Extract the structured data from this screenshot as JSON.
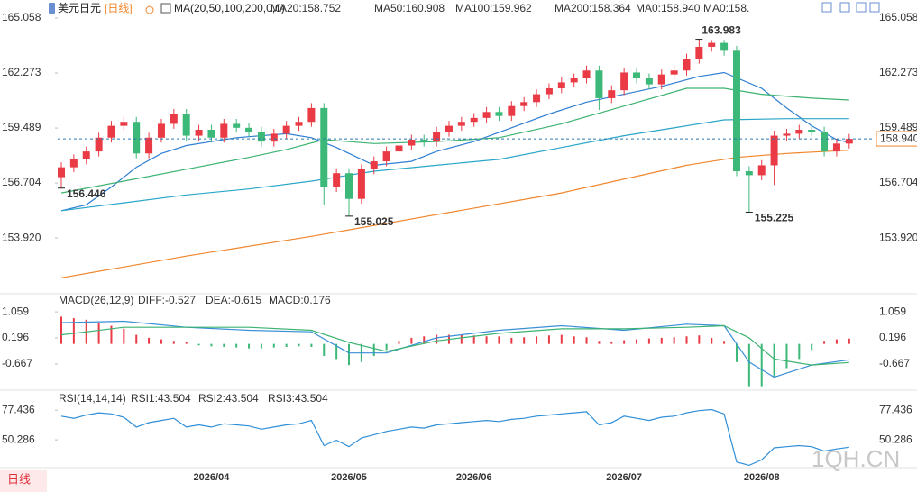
{
  "header": {
    "symbol": "美元日元",
    "period": "[日线]",
    "ma_params": "MA(20,50,100,200,0,0)"
  },
  "tab": "日线",
  "watermark": "1QH.CN",
  "chart_data": [
    {
      "type": "candlestick",
      "categories": [
        null,
        null,
        null,
        null,
        null,
        null,
        null,
        null,
        null,
        null,
        null,
        null,
        "2026/04",
        null,
        null,
        null,
        null,
        null,
        null,
        null,
        null,
        null,
        null,
        "2026/05",
        null,
        null,
        null,
        null,
        null,
        null,
        null,
        null,
        null,
        "2026/06",
        null,
        null,
        null,
        null,
        null,
        null,
        null,
        null,
        null,
        null,
        null,
        "2026/07",
        null,
        null,
        null,
        null,
        null,
        null,
        null,
        null,
        null,
        null,
        "2026/08",
        null,
        null,
        null,
        null,
        null,
        null,
        null
      ],
      "open": [
        157.0,
        157.5,
        157.9,
        158.3,
        159.0,
        159.6,
        159.8,
        158.2,
        159.0,
        159.7,
        160.2,
        159.1,
        159.4,
        159.0,
        159.7,
        159.5,
        159.3,
        158.8,
        159.2,
        159.6,
        159.8,
        160.5,
        156.5,
        157.2,
        155.9,
        157.4,
        157.8,
        158.3,
        158.6,
        158.9,
        158.8,
        159.3,
        159.6,
        159.8,
        160.0,
        160.3,
        160.1,
        160.6,
        160.8,
        161.2,
        161.5,
        161.8,
        162.0,
        162.4,
        161.0,
        161.4,
        162.3,
        162.0,
        161.7,
        162.2,
        162.4,
        163.0,
        163.6,
        163.8,
        163.4,
        157.3,
        157.1,
        157.6,
        159.1,
        159.2,
        159.4,
        159.3,
        158.3,
        158.7
      ],
      "high": [
        157.75,
        158.15,
        158.55,
        159.25,
        159.85,
        160.05,
        160.05,
        159.25,
        159.95,
        160.45,
        160.45,
        159.65,
        159.65,
        159.95,
        159.95,
        159.75,
        159.55,
        159.45,
        159.85,
        160.05,
        160.75,
        160.75,
        157.45,
        157.45,
        157.65,
        158.05,
        158.55,
        158.85,
        159.15,
        159.15,
        159.55,
        159.85,
        160.05,
        160.25,
        160.55,
        160.55,
        160.85,
        161.05,
        161.45,
        161.75,
        162.05,
        162.25,
        162.65,
        162.65,
        161.65,
        162.55,
        162.55,
        162.25,
        162.45,
        162.65,
        163.25,
        163.983,
        163.95,
        163.95,
        163.65,
        157.55,
        157.85,
        159.35,
        159.45,
        159.65,
        159.65,
        159.55,
        158.95,
        159.19
      ],
      "low": [
        156.446,
        157.25,
        157.65,
        158.05,
        158.75,
        159.35,
        157.95,
        157.95,
        158.75,
        159.45,
        158.85,
        158.85,
        158.75,
        158.75,
        159.25,
        159.05,
        158.55,
        158.55,
        158.95,
        159.35,
        159.55,
        155.6,
        156.25,
        155.025,
        155.65,
        157.15,
        157.55,
        158.05,
        158.35,
        158.55,
        158.55,
        159.05,
        159.35,
        159.55,
        159.75,
        159.85,
        159.85,
        160.35,
        160.55,
        160.95,
        161.25,
        161.55,
        161.75,
        160.4,
        160.75,
        161.15,
        161.75,
        161.45,
        161.45,
        161.95,
        162.15,
        162.75,
        163.35,
        163.15,
        157.05,
        155.225,
        156.85,
        156.6,
        158.85,
        158.95,
        159.05,
        158.05,
        158.05,
        158.45
      ],
      "close": [
        157.5,
        157.9,
        158.3,
        159.0,
        159.6,
        159.8,
        158.2,
        159.0,
        159.7,
        160.2,
        159.1,
        159.4,
        159.0,
        159.7,
        159.5,
        159.3,
        158.8,
        159.2,
        159.6,
        159.8,
        160.5,
        156.5,
        157.2,
        155.9,
        157.4,
        157.8,
        158.3,
        158.6,
        158.9,
        158.8,
        159.3,
        159.6,
        159.8,
        160.0,
        160.3,
        160.1,
        160.6,
        160.8,
        161.2,
        161.5,
        161.8,
        162.0,
        162.4,
        161.0,
        161.4,
        162.3,
        162.0,
        161.7,
        162.2,
        162.4,
        163.0,
        163.6,
        163.8,
        163.4,
        157.3,
        157.1,
        157.6,
        159.1,
        159.2,
        159.4,
        159.3,
        158.3,
        158.7,
        158.94
      ],
      "up_color": "#ea3a45",
      "down_color": "#3cb878",
      "ylim": [
        151.14,
        165.15
      ],
      "yticks": [
        {
          "value": 153.92,
          "label": "153.920"
        },
        156.704,
        159.489,
        162.273,
        165.058
      ],
      "series": [
        {
          "name": "MA20:158.752",
          "color": "#2f7fd3",
          "x": [
            0,
            2,
            4,
            6,
            8,
            10,
            14,
            18,
            20,
            22,
            25,
            28,
            30,
            33,
            36,
            39,
            42,
            45,
            48,
            51,
            53,
            56,
            58,
            60,
            62,
            63
          ],
          "values": [
            155.3,
            155.6,
            156.5,
            157.5,
            158.2,
            158.6,
            159.0,
            159.2,
            159.0,
            158.5,
            157.6,
            157.8,
            158.3,
            158.8,
            159.5,
            160.2,
            160.8,
            161.2,
            161.6,
            162.1,
            162.3,
            161.5,
            160.5,
            159.6,
            158.9,
            158.752
          ]
        },
        {
          "name": "MA50:160.908",
          "color": "#3cb371",
          "x": [
            0,
            5,
            10,
            15,
            18,
            21,
            25,
            30,
            35,
            40,
            45,
            50,
            53,
            56,
            60,
            63
          ],
          "values": [
            156.2,
            156.8,
            157.4,
            158.0,
            158.4,
            158.9,
            158.7,
            158.8,
            159.0,
            159.7,
            160.6,
            161.5,
            161.5,
            161.2,
            161.0,
            160.908
          ]
        },
        {
          "name": "MA100:159.962",
          "color": "#2aa6c8",
          "x": [
            0,
            5,
            10,
            15,
            20,
            25,
            30,
            35,
            40,
            45,
            50,
            53,
            58,
            63
          ],
          "values": [
            155.3,
            155.7,
            156.1,
            156.4,
            156.8,
            157.3,
            157.6,
            157.9,
            158.5,
            159.1,
            159.6,
            159.9,
            159.96,
            159.962
          ]
        },
        {
          "name": "MA200:158.364",
          "color": "#f0852a",
          "x": [
            0,
            10,
            20,
            30,
            40,
            50,
            54,
            58,
            63
          ],
          "values": [
            151.9,
            153.0,
            154.0,
            155.1,
            156.2,
            157.6,
            158.0,
            158.2,
            158.364
          ]
        }
      ],
      "legend_extra": [
        {
          "name": "MA0:158.940",
          "color": "#c86ad0"
        },
        {
          "name": "MA0:158.",
          "color": "#3a8fd8"
        }
      ],
      "last_price": {
        "value": 158.94,
        "label": "158.940",
        "color": "#f0852a"
      },
      "annotations": [
        {
          "x": 51,
          "y": 163.983,
          "label": "163.983",
          "color": "#e0303c"
        },
        {
          "x": 0,
          "y": 156.446,
          "label": "156.446",
          "color": "#3cb878"
        },
        {
          "x": 23,
          "y": 155.025,
          "label": "155.025",
          "color": "#3cb878"
        },
        {
          "x": 55,
          "y": 155.225,
          "label": "155.225",
          "color": "#3cb878"
        }
      ]
    },
    {
      "type": "bar",
      "title": "MACD(26,12,9)",
      "name": "MACD:0.176",
      "name_color": "#2aa6c8",
      "values": [
        0.9,
        0.85,
        0.8,
        0.7,
        0.6,
        0.5,
        0.3,
        0.2,
        0.15,
        0.1,
        0.05,
        -0.05,
        -0.08,
        -0.1,
        -0.12,
        -0.15,
        -0.15,
        -0.12,
        -0.1,
        -0.08,
        -0.1,
        -0.4,
        -0.5,
        -0.7,
        -0.6,
        -0.4,
        -0.2,
        0.1,
        0.2,
        0.25,
        0.3,
        0.3,
        0.3,
        0.28,
        0.25,
        0.25,
        0.2,
        0.22,
        0.25,
        0.28,
        0.3,
        0.25,
        0.22,
        0.1,
        0.08,
        0.12,
        0.15,
        0.18,
        0.2,
        0.22,
        0.25,
        0.28,
        0.2,
        0.1,
        -0.6,
        -1.4,
        -1.4,
        -1.1,
        -0.8,
        -0.5,
        -0.2,
        0.1,
        0.15,
        0.176
      ],
      "up_color": "#ea3a45",
      "down_color": "#3cb878",
      "ylim": [
        -1.5,
        1.3
      ],
      "yticks": [
        -0.667,
        0.196,
        1.059
      ],
      "series": [
        {
          "name": "DIFF:-0.527",
          "color": "#3a8fd8",
          "x": [
            0,
            5,
            10,
            15,
            20,
            23,
            26,
            30,
            35,
            40,
            45,
            50,
            53,
            55,
            57,
            60,
            63
          ],
          "values": [
            0.7,
            0.75,
            0.55,
            0.45,
            0.4,
            -0.3,
            -0.3,
            0.2,
            0.45,
            0.6,
            0.45,
            0.65,
            0.6,
            -0.6,
            -1.1,
            -0.7,
            -0.527
          ]
        },
        {
          "name": "DEA:-0.615",
          "color": "#3cb371",
          "x": [
            0,
            5,
            10,
            15,
            20,
            23,
            26,
            30,
            35,
            40,
            45,
            50,
            53,
            55,
            57,
            60,
            63
          ],
          "values": [
            0.3,
            0.55,
            0.55,
            0.55,
            0.45,
            0.05,
            -0.25,
            0.1,
            0.35,
            0.5,
            0.5,
            0.55,
            0.6,
            0.2,
            -0.5,
            -0.7,
            -0.615
          ]
        }
      ]
    },
    {
      "type": "line",
      "title": "RSI(14,14,14)",
      "ylim": [
        24,
        85
      ],
      "yticks": [
        50.286,
        77.436
      ],
      "series": [
        {
          "name": "RSI1:43.504",
          "color": "#2f8fd8",
          "values": [
            72,
            70,
            73,
            75,
            74,
            71,
            62,
            66,
            68,
            70,
            62,
            64,
            62,
            65,
            64,
            63,
            60,
            62,
            64,
            65,
            68,
            45,
            50,
            44,
            52,
            55,
            58,
            60,
            62,
            61,
            64,
            65,
            66,
            67,
            68,
            67,
            69,
            70,
            72,
            73,
            74,
            75,
            76,
            64,
            66,
            72,
            70,
            68,
            71,
            72,
            75,
            77,
            78,
            74,
            30,
            27,
            32,
            43,
            44,
            45,
            44,
            40,
            42,
            43.504
          ]
        }
      ],
      "legend_extra": [
        {
          "name": "RSI2:43.504",
          "color": "#2aa6c8"
        },
        {
          "name": "RSI3:43.504",
          "color": "#3cb371"
        }
      ]
    }
  ]
}
